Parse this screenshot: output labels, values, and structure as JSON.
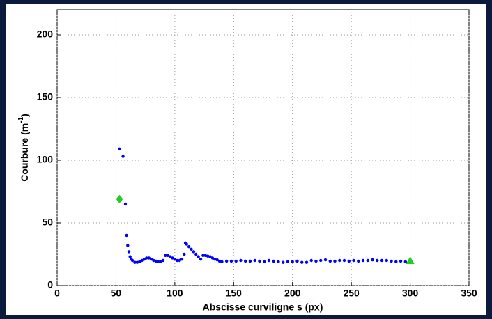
{
  "chart_data": {
    "type": "scatter",
    "xlabel": "Abscisse curviligne s (px)",
    "ylabel": {
      "text": "Courbure (m",
      "superscript": "-1",
      "suffix": ")"
    },
    "xlim": [
      0,
      350
    ],
    "xticks": [
      0,
      50,
      100,
      150,
      200,
      250,
      300,
      350
    ],
    "ylim": [
      0,
      220
    ],
    "yticks": [
      0,
      50,
      100,
      150,
      200
    ],
    "grid": true,
    "series": [
      {
        "marker": "dot",
        "color": "#0000ff",
        "x": [
          53,
          56,
          58,
          59,
          60,
          61,
          62,
          63,
          64,
          66,
          68,
          70,
          72,
          74,
          76,
          78,
          80,
          82,
          84,
          86,
          88,
          90,
          92,
          94,
          96,
          98,
          100,
          102,
          104,
          106,
          108,
          109,
          110,
          112,
          114,
          116,
          118,
          120,
          122,
          124,
          126,
          128,
          130,
          132,
          134,
          136,
          138,
          140,
          144,
          148,
          152,
          156,
          160,
          164,
          168,
          172,
          176,
          180,
          184,
          188,
          192,
          196,
          200,
          204,
          208,
          212,
          216,
          220,
          224,
          228,
          232,
          236,
          240,
          244,
          248,
          252,
          256,
          260,
          264,
          268,
          272,
          276,
          280,
          284,
          288,
          292,
          296
        ],
        "y": [
          109,
          103,
          65,
          40,
          32,
          27,
          23,
          21,
          20,
          18.5,
          18.5,
          19,
          20,
          21,
          22,
          22,
          21,
          20,
          19.5,
          19,
          19,
          20,
          24,
          24,
          23,
          22,
          21,
          20,
          20,
          21,
          25,
          34,
          33,
          31,
          29,
          27,
          25,
          23,
          21,
          24,
          24,
          23.5,
          23,
          22,
          21,
          20.5,
          19.5,
          19,
          19.5,
          19.5,
          19.5,
          20,
          19.5,
          19.5,
          20,
          19.5,
          19,
          20,
          19.5,
          19,
          18.5,
          19,
          19,
          19.5,
          18.5,
          18.5,
          20,
          19.5,
          20,
          20.5,
          19.5,
          19.5,
          20,
          20,
          19.5,
          20,
          19.5,
          20,
          20,
          20.5,
          20,
          20,
          20,
          19.5,
          19,
          19.5,
          19
        ]
      },
      {
        "marker": "diamond",
        "color": "#22cc22",
        "x": [
          53
        ],
        "y": [
          69
        ]
      },
      {
        "marker": "triangle",
        "color": "#22cc22",
        "x": [
          300
        ],
        "y": [
          20
        ]
      }
    ]
  }
}
